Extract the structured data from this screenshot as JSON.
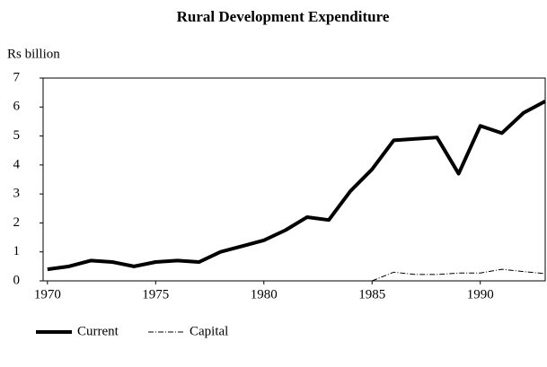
{
  "chart_data": {
    "type": "line",
    "title": "Rural Development Expenditure",
    "y_label": "Rs billion",
    "x": [
      1970,
      1971,
      1972,
      1973,
      1974,
      1975,
      1976,
      1977,
      1978,
      1979,
      1980,
      1981,
      1982,
      1983,
      1984,
      1985,
      1986,
      1987,
      1988,
      1989,
      1990,
      1991,
      1992,
      1993
    ],
    "series": [
      {
        "name": "Current",
        "color": "#000000",
        "style": "solid",
        "values": [
          0.4,
          0.5,
          0.7,
          0.65,
          0.5,
          0.65,
          0.7,
          0.65,
          1.0,
          1.2,
          1.4,
          1.75,
          2.2,
          2.1,
          3.1,
          3.85,
          4.85,
          4.9,
          4.95,
          3.7,
          5.35,
          5.1,
          5.8,
          6.2
        ]
      },
      {
        "name": "Capital",
        "color": "#000000",
        "style": "dashdot",
        "values": [
          null,
          null,
          null,
          null,
          null,
          null,
          null,
          null,
          null,
          null,
          null,
          null,
          null,
          null,
          null,
          0,
          0.3,
          0.22,
          0.22,
          0.27,
          0.27,
          0.4,
          0.32,
          0.25
        ]
      }
    ],
    "xlim": [
      1969.8,
      1993
    ],
    "xticks": [
      1970,
      1975,
      1980,
      1985,
      1990
    ],
    "ylim": [
      0,
      7
    ],
    "yticks": [
      0,
      1,
      2,
      3,
      4,
      5,
      6,
      7
    ],
    "legend": "bottom"
  }
}
